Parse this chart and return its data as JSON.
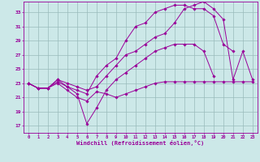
{
  "xlabel": "Windchill (Refroidissement éolien,°C)",
  "xlim": [
    -0.5,
    23.5
  ],
  "ylim": [
    16.0,
    34.5
  ],
  "yticks": [
    17,
    19,
    21,
    23,
    25,
    27,
    29,
    31,
    33
  ],
  "xticks": [
    0,
    1,
    2,
    3,
    4,
    5,
    6,
    7,
    8,
    9,
    10,
    11,
    12,
    13,
    14,
    15,
    16,
    17,
    18,
    19,
    20,
    21,
    22,
    23
  ],
  "bg_color": "#cce8e8",
  "line_color": "#990099",
  "grid_color": "#99bbbb",
  "lines": [
    [
      23.0,
      22.3,
      22.3,
      23.0,
      22.0,
      21.0,
      20.5,
      21.8,
      21.5,
      21.0,
      21.5,
      22.0,
      22.5,
      23.0,
      23.2,
      23.2,
      23.2,
      23.2,
      23.2,
      23.2,
      23.2,
      23.2,
      23.2,
      23.2
    ],
    [
      23.0,
      22.3,
      22.3,
      23.2,
      22.5,
      21.5,
      17.3,
      19.5,
      22.0,
      23.5,
      24.5,
      25.5,
      26.5,
      27.5,
      28.0,
      28.5,
      28.5,
      28.5,
      27.5,
      24.0,
      null,
      null,
      null,
      null
    ],
    [
      23.0,
      22.3,
      22.3,
      23.5,
      22.5,
      22.0,
      21.5,
      24.0,
      25.5,
      26.5,
      29.0,
      31.0,
      31.5,
      33.0,
      33.5,
      34.0,
      34.0,
      33.5,
      33.5,
      32.5,
      28.5,
      27.5,
      null,
      null
    ],
    [
      23.0,
      22.3,
      22.3,
      23.5,
      23.0,
      22.5,
      22.0,
      22.5,
      24.0,
      25.5,
      27.0,
      27.5,
      28.5,
      29.5,
      30.0,
      31.5,
      33.5,
      34.0,
      34.5,
      33.5,
      32.0,
      23.5,
      27.5,
      23.5
    ]
  ]
}
